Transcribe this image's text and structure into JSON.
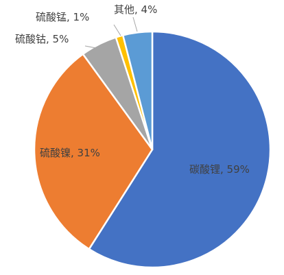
{
  "chart_data": {
    "type": "pie",
    "title": "",
    "slices": [
      {
        "name": "碳酸锂",
        "value": 59,
        "label": "碳酸锂, 59%",
        "color": "#4472c4"
      },
      {
        "name": "硫酸镍",
        "value": 31,
        "label": "硫酸镍, 31%",
        "color": "#ed7d31"
      },
      {
        "name": "硫酸钴",
        "value": 5,
        "label": "硫酸钴, 5%",
        "color": "#a5a5a5"
      },
      {
        "name": "硫酸锰",
        "value": 1,
        "label": "硫酸锰, 1%",
        "color": "#ffc000"
      },
      {
        "name": "其他",
        "value": 4,
        "label": "其他, 4%",
        "color": "#5b9bd5"
      }
    ]
  }
}
